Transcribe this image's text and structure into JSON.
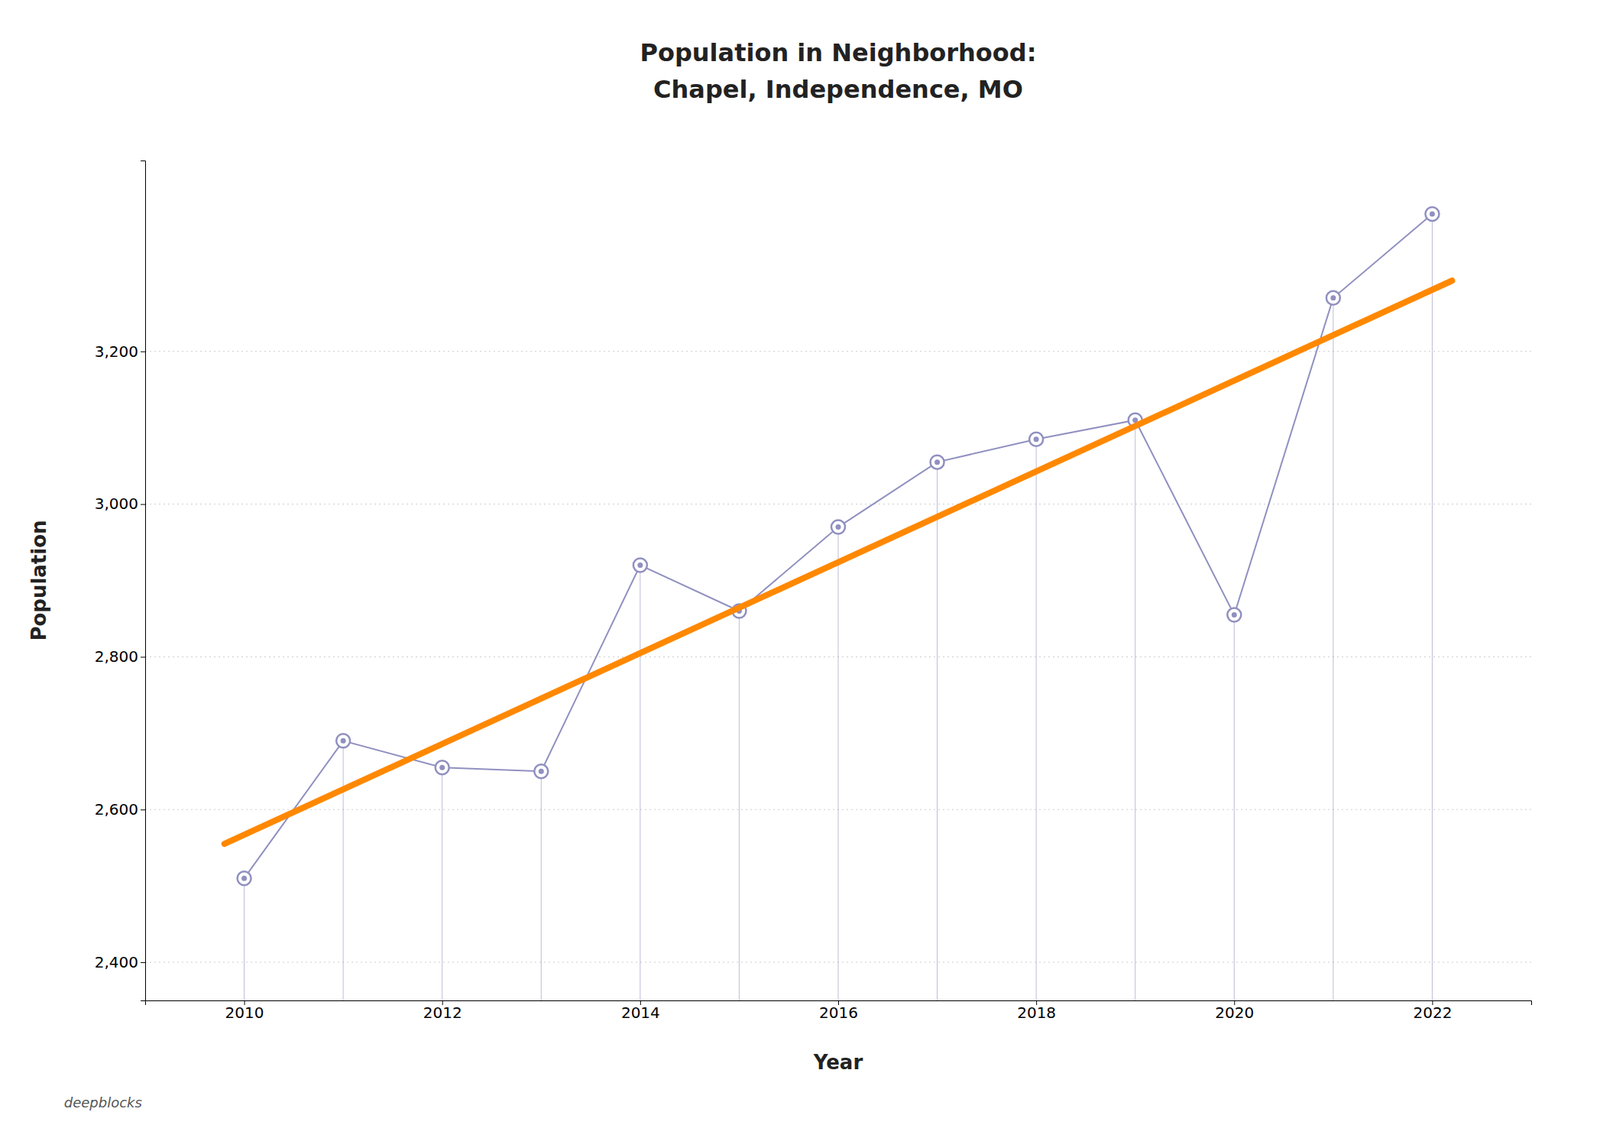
{
  "chart_data": {
    "type": "line",
    "title": "Population in Neighborhood:\nChapel, Independence, MO",
    "x_label": "Year",
    "y_label": "Population",
    "x": [
      2010,
      2011,
      2012,
      2013,
      2014,
      2015,
      2016,
      2017,
      2018,
      2019,
      2020,
      2021,
      2022
    ],
    "series": [
      {
        "type": "line",
        "color": "#9090c0",
        "marker": "circle",
        "values": [
          2510,
          2690,
          2655,
          2650,
          2920,
          2860,
          2970,
          3055,
          3085,
          3110,
          2855,
          3270,
          3380
        ]
      },
      {
        "type": "line",
        "color": "#ff8800",
        "line_style": "solid",
        "x": [
          2009.8,
          2022.2
        ],
        "values": [
          2555.082418,
          3292.60989
        ]
      }
    ],
    "xlim": [
      2009.0,
      2023.0
    ],
    "xticks": [
      2010,
      2012,
      2014,
      2016,
      2018,
      2020,
      2022
    ],
    "ylim": [
      2350,
      3450
    ],
    "yticks": [
      {
        "value": 2400,
        "label": "2,400"
      },
      {
        "value": 2600,
        "label": "2,600"
      },
      {
        "value": 2800,
        "label": "2,800"
      },
      {
        "value": 3000,
        "label": "3,000"
      },
      {
        "value": 3200,
        "label": "3,200"
      }
    ],
    "grid": true,
    "annotations": [
      "deepblocks"
    ]
  }
}
